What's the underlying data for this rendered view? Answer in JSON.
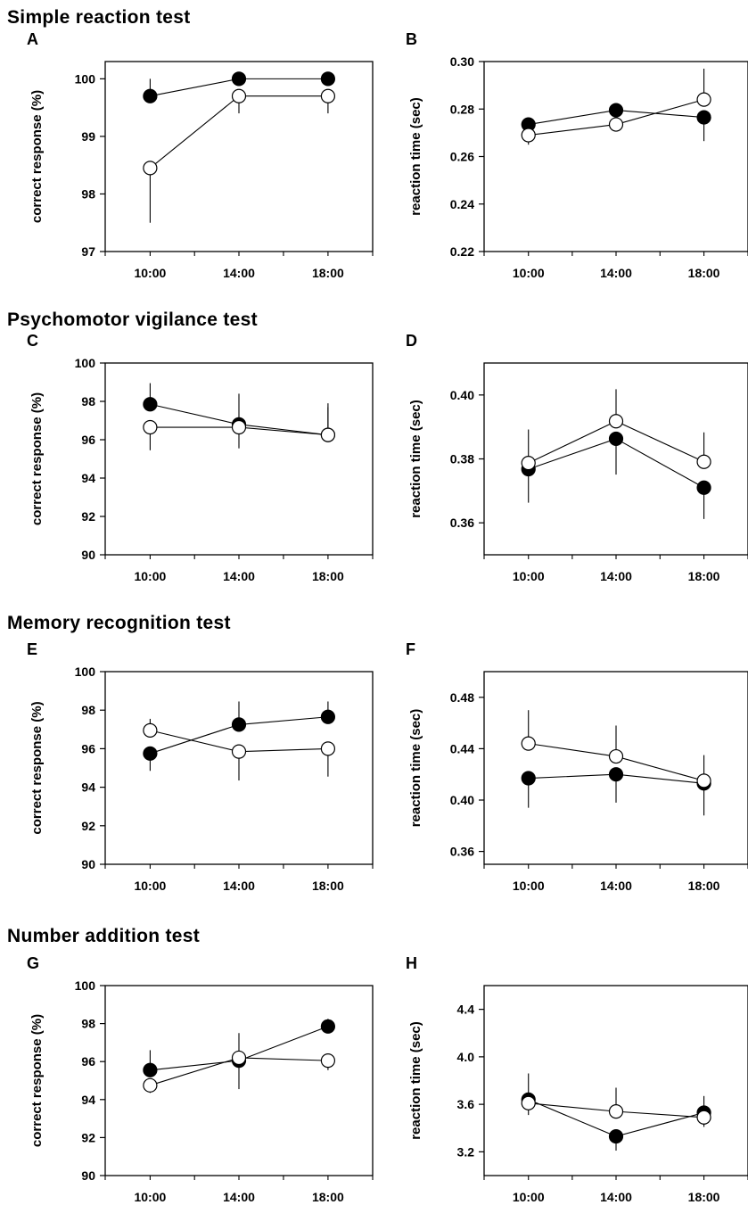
{
  "figure": {
    "sections": [
      {
        "title": "Simple reaction test"
      },
      {
        "title": "Psychomotor vigilance test"
      },
      {
        "title": "Memory recognition test"
      },
      {
        "title": "Number addition test"
      }
    ]
  },
  "chart_data": [
    {
      "panel": "A",
      "type": "line",
      "section": "Simple reaction test",
      "categories": [
        "10:00",
        "14:00",
        "18:00"
      ],
      "ylabel": "correct response (%)",
      "ylim": [
        97,
        100.3
      ],
      "yticks": [
        97,
        98,
        99,
        100
      ],
      "ytick_labels": [
        "97",
        "98",
        "99",
        "100"
      ],
      "series": [
        {
          "marker": "filled",
          "values": [
            99.7,
            100.0,
            100.0
          ],
          "err": [
            0.3,
            0,
            0
          ]
        },
        {
          "marker": "open",
          "values": [
            98.45,
            99.7,
            99.7
          ],
          "err": [
            0.95,
            0.3,
            0.3
          ]
        }
      ],
      "annotation": ""
    },
    {
      "panel": "B",
      "type": "line",
      "section": "Simple reaction test",
      "categories": [
        "10:00",
        "14:00",
        "18:00"
      ],
      "ylabel": "reaction time (sec)",
      "ylim": [
        0.22,
        0.3
      ],
      "yticks": [
        0.22,
        0.24,
        0.26,
        0.28,
        0.3
      ],
      "ytick_labels": [
        "0.22",
        "0.24",
        "0.26",
        "0.28",
        "0.30"
      ],
      "series": [
        {
          "marker": "filled",
          "values": [
            0.2735,
            0.2795,
            0.2765
          ],
          "err": [
            0.002,
            0.003,
            0.01
          ]
        },
        {
          "marker": "open",
          "values": [
            0.269,
            0.2735,
            0.284
          ],
          "err": [
            0.004,
            0.003,
            0.013
          ]
        }
      ],
      "annotation": ""
    },
    {
      "panel": "C",
      "type": "line",
      "section": "Psychomotor vigilance test",
      "categories": [
        "10:00",
        "14:00",
        "18:00"
      ],
      "ylabel": "correct response (%)",
      "ylim": [
        90,
        100
      ],
      "yticks": [
        90,
        92,
        94,
        96,
        98,
        100
      ],
      "ytick_labels": [
        "90",
        "92",
        "94",
        "96",
        "98",
        "100"
      ],
      "series": [
        {
          "marker": "filled",
          "values": [
            97.85,
            96.8,
            96.25
          ],
          "err": [
            1.1,
            1.6,
            1.65
          ]
        },
        {
          "marker": "open",
          "values": [
            96.65,
            96.65,
            96.25
          ],
          "err": [
            1.2,
            1.1,
            1.45
          ]
        }
      ],
      "annotation": ""
    },
    {
      "panel": "D",
      "type": "line",
      "section": "Psychomotor vigilance test",
      "categories": [
        "10:00",
        "14:00",
        "18:00"
      ],
      "ylabel": "reaction time (sec)",
      "ylim": [
        0.35,
        0.41
      ],
      "yticks": [
        0.36,
        0.38,
        0.4
      ],
      "ytick_labels": [
        "0.36",
        "0.38",
        "0.40"
      ],
      "series": [
        {
          "marker": "filled",
          "values": [
            0.3768,
            0.3863,
            0.371
          ],
          "err": [
            0.0105,
            0.0112,
            0.0098
          ]
        },
        {
          "marker": "open",
          "values": [
            0.3787,
            0.3918,
            0.3791
          ],
          "err": [
            0.0105,
            0.01,
            0.0092
          ]
        }
      ],
      "annotation": "*"
    },
    {
      "panel": "E",
      "type": "line",
      "section": "Memory recognition test",
      "categories": [
        "10:00",
        "14:00",
        "18:00"
      ],
      "ylabel": "correct response (%)",
      "ylim": [
        90,
        100
      ],
      "yticks": [
        90,
        92,
        94,
        96,
        98,
        100
      ],
      "ytick_labels": [
        "90",
        "92",
        "94",
        "96",
        "98",
        "100"
      ],
      "series": [
        {
          "marker": "filled",
          "values": [
            95.75,
            97.25,
            97.65
          ],
          "err": [
            0.9,
            1.2,
            0.8
          ]
        },
        {
          "marker": "open",
          "values": [
            96.95,
            95.85,
            96.0
          ],
          "err": [
            0.6,
            1.5,
            1.45
          ]
        }
      ],
      "annotation": ""
    },
    {
      "panel": "F",
      "type": "line",
      "section": "Memory recognition test",
      "categories": [
        "10:00",
        "14:00",
        "18:00"
      ],
      "ylabel": "reaction time (sec)",
      "ylim": [
        0.35,
        0.5
      ],
      "yticks": [
        0.36,
        0.4,
        0.44,
        0.48
      ],
      "ytick_labels": [
        "0.36",
        "0.40",
        "0.44",
        "0.48"
      ],
      "series": [
        {
          "marker": "filled",
          "values": [
            0.417,
            0.42,
            0.413
          ],
          "err": [
            0.023,
            0.022,
            0.025
          ]
        },
        {
          "marker": "open",
          "values": [
            0.444,
            0.434,
            0.415
          ],
          "err": [
            0.026,
            0.024,
            0.02
          ]
        }
      ],
      "annotation": ""
    },
    {
      "panel": "G",
      "type": "line",
      "section": "Number addition test",
      "categories": [
        "10:00",
        "14:00",
        "18:00"
      ],
      "ylabel": "correct response (%)",
      "ylim": [
        90,
        100
      ],
      "yticks": [
        90,
        92,
        94,
        96,
        98,
        100
      ],
      "ytick_labels": [
        "90",
        "92",
        "94",
        "96",
        "98",
        "100"
      ],
      "series": [
        {
          "marker": "filled",
          "values": [
            95.55,
            96.05,
            97.85
          ],
          "err": [
            1.05,
            1.5,
            0.4
          ]
        },
        {
          "marker": "open",
          "values": [
            94.75,
            96.2,
            96.05
          ],
          "err": [
            0.4,
            1.3,
            0.5
          ]
        }
      ],
      "annotation": ""
    },
    {
      "panel": "H",
      "type": "line",
      "section": "Number addition test",
      "categories": [
        "10:00",
        "14:00",
        "18:00"
      ],
      "ylabel": "reaction time (sec)",
      "ylim": [
        3.0,
        4.6
      ],
      "yticks": [
        3.2,
        3.6,
        4.0,
        4.4
      ],
      "ytick_labels": [
        "3.2",
        "3.6",
        "4.0",
        "4.4"
      ],
      "series": [
        {
          "marker": "filled",
          "values": [
            3.64,
            3.33,
            3.53
          ],
          "err": [
            0.22,
            0.12,
            0.14
          ]
        },
        {
          "marker": "open",
          "values": [
            3.61,
            3.54,
            3.49
          ],
          "err": [
            0.1,
            0.2,
            0.08
          ]
        }
      ],
      "annotation": ""
    }
  ]
}
